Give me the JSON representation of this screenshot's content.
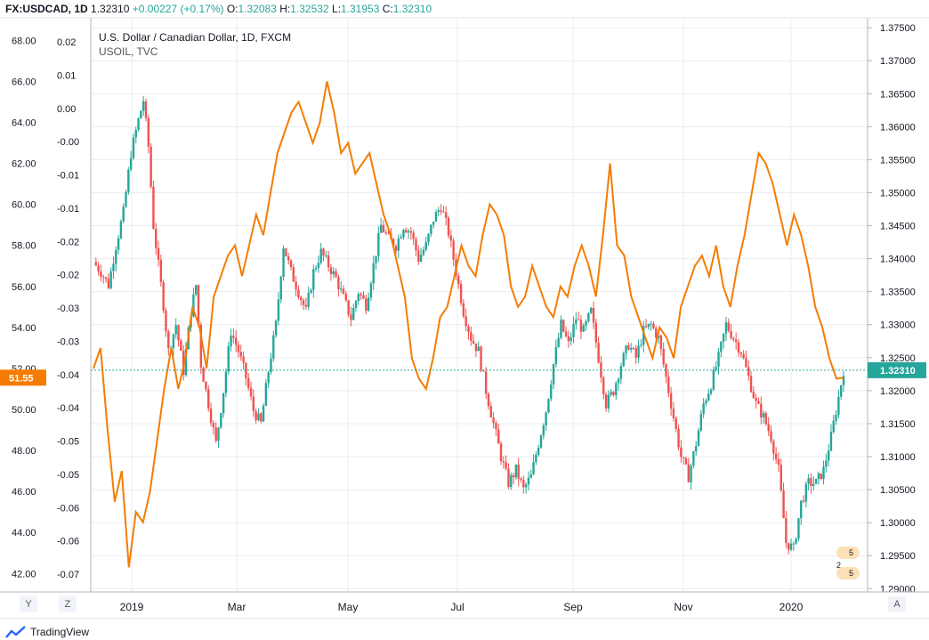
{
  "header": {
    "symbol": "FX:USDCAD, 1D",
    "last": "1.32310",
    "change": "+0.00227 (+0.17%)",
    "o_label": "O:",
    "o": "1.32083",
    "h_label": "H:",
    "h": "1.32532",
    "l_label": "L:",
    "l": "1.31953",
    "c_label": "C:",
    "c": "1.32310"
  },
  "legend": {
    "line1": "U.S. Dollar / Canadian Dollar, 1D, FXCM",
    "line2": "USOIL, TVC"
  },
  "footer": {
    "brand": "TradingView",
    "y_btn": "Y",
    "z_btn": "Z",
    "a_btn": "A"
  },
  "colors": {
    "up": "#26a69a",
    "down": "#ef5350",
    "oil": "#f57c00",
    "grid": "#e9ecf2",
    "price_line": "#26a69a"
  },
  "flags": {
    "us_count": "5 2",
    "ca_count": "5"
  },
  "chart_data": {
    "type": "candlestick+line",
    "title": "U.S. Dollar / Canadian Dollar, 1D, FXCM",
    "series": [
      {
        "name": "USD/CAD",
        "axis": "right",
        "type": "candlestick",
        "current": "1.32310"
      },
      {
        "name": "USOIL",
        "axis": "left",
        "type": "line",
        "current": "51.55"
      }
    ],
    "x_ticks": [
      "2019",
      "Mar",
      "May",
      "Jul",
      "Sep",
      "Nov",
      "2020"
    ],
    "right_axis": {
      "ticks": [
        "1.37500",
        "1.37000",
        "1.36500",
        "1.36000",
        "1.35500",
        "1.35000",
        "1.34500",
        "1.34000",
        "1.33500",
        "1.33000",
        "1.32500",
        "1.32000",
        "1.31500",
        "1.31000",
        "1.30500",
        "1.30000",
        "1.29500",
        "1.29000"
      ],
      "ylim": [
        1.2895,
        1.3765
      ],
      "current_label": "1.32310"
    },
    "left_axis": {
      "ticks": [
        "68.00",
        "66.00",
        "64.00",
        "62.00",
        "60.00",
        "58.00",
        "56.00",
        "54.00",
        "52.00",
        "50.00",
        "48.00",
        "46.00",
        "44.00",
        "42.00"
      ],
      "ylim": [
        41.1,
        69.1
      ],
      "current_label": "51.55"
    },
    "mid_axis": {
      "ticks": [
        "0.02",
        "0.01",
        "0.00",
        "-0.00",
        "-0.01",
        "-0.01",
        "-0.02",
        "-0.02",
        "-0.03",
        "-0.03",
        "-0.04",
        "-0.04",
        "-0.05",
        "-0.05",
        "-0.06",
        "-0.06",
        "-0.07"
      ]
    },
    "usdcad_path": [
      [
        0,
        1.3395
      ],
      [
        3,
        1.338
      ],
      [
        6,
        1.336
      ],
      [
        9,
        1.342
      ],
      [
        12,
        1.347
      ],
      [
        15,
        1.356
      ],
      [
        18,
        1.361
      ],
      [
        20,
        1.364
      ],
      [
        22,
        1.357
      ],
      [
        24,
        1.345
      ],
      [
        26,
        1.339
      ],
      [
        28,
        1.333
      ],
      [
        30,
        1.326
      ],
      [
        33,
        1.33
      ],
      [
        36,
        1.323
      ],
      [
        39,
        1.332
      ],
      [
        41,
        1.336
      ],
      [
        43,
        1.324
      ],
      [
        46,
        1.318
      ],
      [
        49,
        1.312
      ],
      [
        52,
        1.32
      ],
      [
        55,
        1.329
      ],
      [
        58,
        1.326
      ],
      [
        61,
        1.322
      ],
      [
        64,
        1.317
      ],
      [
        67,
        1.315
      ],
      [
        70,
        1.323
      ],
      [
        73,
        1.33
      ],
      [
        76,
        1.342
      ],
      [
        79,
        1.338
      ],
      [
        82,
        1.335
      ],
      [
        85,
        1.332
      ],
      [
        88,
        1.338
      ],
      [
        91,
        1.341
      ],
      [
        94,
        1.339
      ],
      [
        97,
        1.337
      ],
      [
        100,
        1.334
      ],
      [
        103,
        1.331
      ],
      [
        106,
        1.335
      ],
      [
        109,
        1.333
      ],
      [
        112,
        1.339
      ],
      [
        115,
        1.345
      ],
      [
        118,
        1.343
      ],
      [
        121,
        1.342
      ],
      [
        124,
        1.345
      ],
      [
        127,
        1.344
      ],
      [
        130,
        1.34
      ],
      [
        133,
        1.342
      ],
      [
        136,
        1.346
      ],
      [
        139,
        1.348
      ],
      [
        142,
        1.344
      ],
      [
        145,
        1.338
      ],
      [
        148,
        1.332
      ],
      [
        151,
        1.328
      ],
      [
        154,
        1.326
      ],
      [
        157,
        1.32
      ],
      [
        160,
        1.315
      ],
      [
        163,
        1.31
      ],
      [
        166,
        1.306
      ],
      [
        169,
        1.308
      ],
      [
        172,
        1.305
      ],
      [
        175,
        1.307
      ],
      [
        178,
        1.312
      ],
      [
        181,
        1.317
      ],
      [
        184,
        1.324
      ],
      [
        187,
        1.33
      ],
      [
        190,
        1.327
      ],
      [
        193,
        1.331
      ],
      [
        196,
        1.329
      ],
      [
        199,
        1.332
      ],
      [
        202,
        1.325
      ],
      [
        205,
        1.318
      ],
      [
        208,
        1.32
      ],
      [
        211,
        1.324
      ],
      [
        214,
        1.327
      ],
      [
        217,
        1.325
      ],
      [
        220,
        1.329
      ],
      [
        223,
        1.33
      ],
      [
        226,
        1.328
      ],
      [
        229,
        1.322
      ],
      [
        232,
        1.316
      ],
      [
        235,
        1.31
      ],
      [
        238,
        1.307
      ],
      [
        241,
        1.312
      ],
      [
        244,
        1.318
      ],
      [
        247,
        1.321
      ],
      [
        250,
        1.325
      ],
      [
        253,
        1.33
      ],
      [
        256,
        1.328
      ],
      [
        259,
        1.326
      ],
      [
        262,
        1.322
      ],
      [
        265,
        1.318
      ],
      [
        268,
        1.316
      ],
      [
        271,
        1.313
      ],
      [
        274,
        1.308
      ],
      [
        277,
        1.297
      ],
      [
        280,
        1.296
      ],
      [
        283,
        1.303
      ],
      [
        286,
        1.306
      ],
      [
        289,
        1.306
      ],
      [
        292,
        1.308
      ],
      [
        295,
        1.313
      ],
      [
        298,
        1.319
      ],
      [
        300,
        1.3231
      ]
    ],
    "oil_path": [
      [
        0,
        52.0
      ],
      [
        2,
        53.0
      ],
      [
        4,
        49.0
      ],
      [
        6,
        45.5
      ],
      [
        8,
        47.0
      ],
      [
        10,
        42.3
      ],
      [
        12,
        45.0
      ],
      [
        14,
        44.5
      ],
      [
        16,
        46.0
      ],
      [
        18,
        48.5
      ],
      [
        20,
        51.0
      ],
      [
        22,
        53.0
      ],
      [
        24,
        51.0
      ],
      [
        26,
        52.5
      ],
      [
        28,
        55.0
      ],
      [
        30,
        54.0
      ],
      [
        32,
        52.0
      ],
      [
        34,
        55.5
      ],
      [
        36,
        56.5
      ],
      [
        38,
        57.5
      ],
      [
        40,
        58.0
      ],
      [
        42,
        56.5
      ],
      [
        44,
        58.0
      ],
      [
        46,
        59.5
      ],
      [
        48,
        58.5
      ],
      [
        50,
        60.5
      ],
      [
        52,
        62.5
      ],
      [
        54,
        63.5
      ],
      [
        56,
        64.5
      ],
      [
        58,
        65.0
      ],
      [
        60,
        64.0
      ],
      [
        62,
        63.0
      ],
      [
        64,
        64.0
      ],
      [
        66,
        66.0
      ],
      [
        68,
        64.5
      ],
      [
        70,
        62.5
      ],
      [
        72,
        63.0
      ],
      [
        74,
        61.5
      ],
      [
        76,
        62.0
      ],
      [
        78,
        62.5
      ],
      [
        80,
        61.0
      ],
      [
        82,
        59.5
      ],
      [
        84,
        58.5
      ],
      [
        86,
        57.0
      ],
      [
        88,
        55.5
      ],
      [
        90,
        52.5
      ],
      [
        92,
        51.5
      ],
      [
        94,
        51.0
      ],
      [
        96,
        52.5
      ],
      [
        98,
        54.5
      ],
      [
        100,
        55.0
      ],
      [
        102,
        56.5
      ],
      [
        104,
        58.0
      ],
      [
        106,
        57.0
      ],
      [
        108,
        56.5
      ],
      [
        110,
        58.5
      ],
      [
        112,
        60.0
      ],
      [
        114,
        59.5
      ],
      [
        116,
        58.5
      ],
      [
        118,
        56.0
      ],
      [
        120,
        55.0
      ],
      [
        122,
        55.5
      ],
      [
        124,
        57.0
      ],
      [
        126,
        56.0
      ],
      [
        128,
        55.0
      ],
      [
        130,
        54.5
      ],
      [
        132,
        56.0
      ],
      [
        134,
        55.5
      ],
      [
        136,
        57.0
      ],
      [
        138,
        58.0
      ],
      [
        140,
        57.0
      ],
      [
        142,
        55.5
      ],
      [
        144,
        58.5
      ],
      [
        146,
        62.0
      ],
      [
        148,
        58.0
      ],
      [
        150,
        57.5
      ],
      [
        152,
        55.5
      ],
      [
        154,
        54.5
      ],
      [
        156,
        53.5
      ],
      [
        158,
        52.5
      ],
      [
        160,
        54.0
      ],
      [
        162,
        53.5
      ],
      [
        164,
        52.5
      ],
      [
        166,
        55.0
      ],
      [
        168,
        56.0
      ],
      [
        170,
        57.0
      ],
      [
        172,
        57.5
      ],
      [
        174,
        56.5
      ],
      [
        176,
        58.0
      ],
      [
        178,
        56.0
      ],
      [
        180,
        55.0
      ],
      [
        182,
        57.0
      ],
      [
        184,
        58.5
      ],
      [
        186,
        60.5
      ],
      [
        188,
        62.5
      ],
      [
        190,
        62.0
      ],
      [
        192,
        61.0
      ],
      [
        194,
        59.5
      ],
      [
        196,
        58.0
      ],
      [
        198,
        59.5
      ],
      [
        200,
        58.5
      ],
      [
        202,
        57.0
      ],
      [
        204,
        55.0
      ],
      [
        206,
        54.0
      ],
      [
        208,
        52.5
      ],
      [
        210,
        51.5
      ],
      [
        212,
        51.55
      ]
    ]
  }
}
